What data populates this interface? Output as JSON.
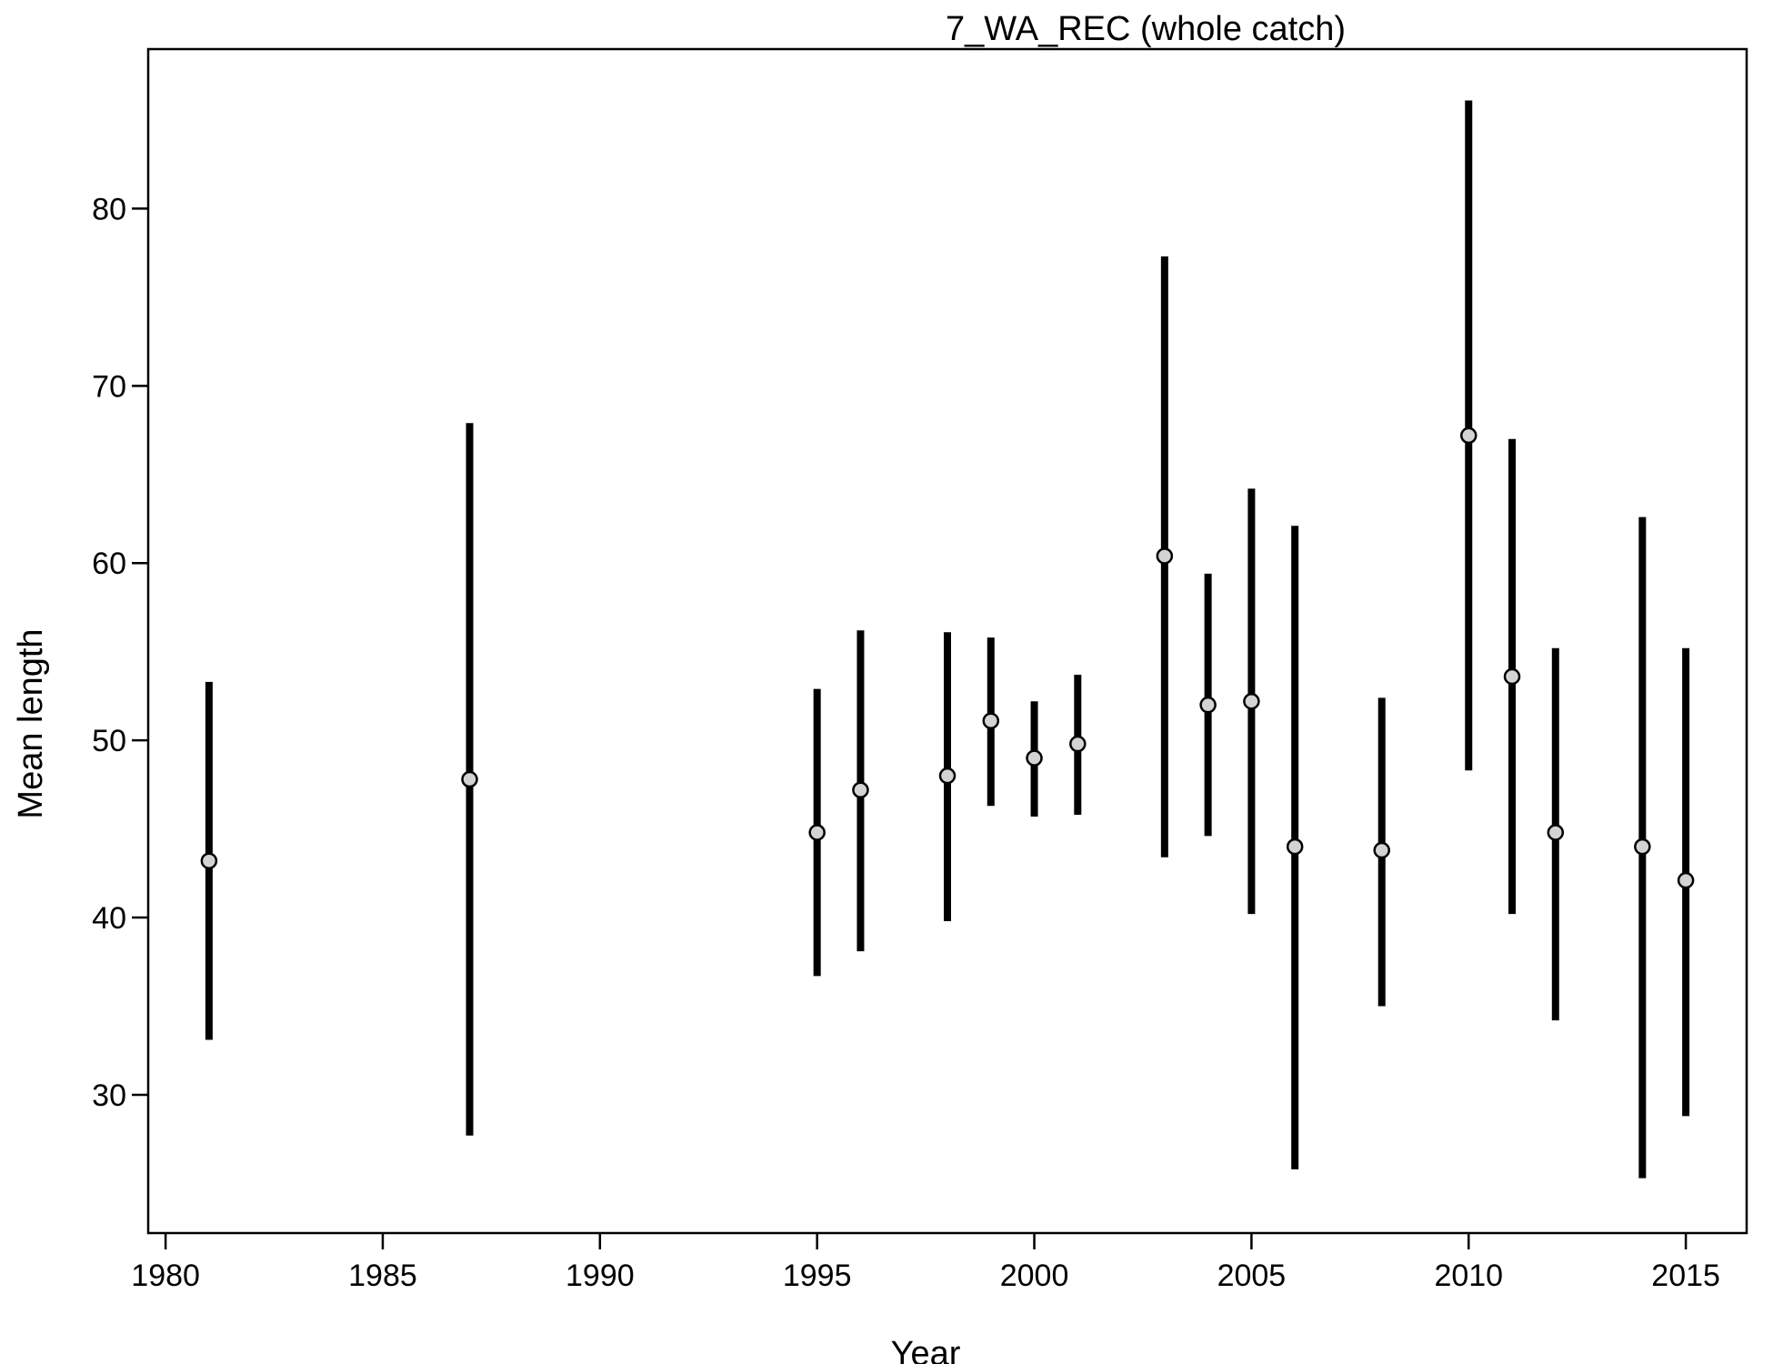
{
  "chart_data": {
    "type": "scatter",
    "title": "7_WA_REC (whole catch)",
    "xlabel": "Year",
    "ylabel": "Mean length",
    "xlim": [
      1979.6,
      2016.4
    ],
    "ylim": [
      22.2,
      89.0
    ],
    "x_ticks": [
      1980,
      1985,
      1990,
      1995,
      2000,
      2005,
      2010,
      2015
    ],
    "y_ticks": [
      30,
      40,
      50,
      60,
      70,
      80
    ],
    "grid": false,
    "legend": "none",
    "point_color": "#d3d3d3",
    "bar_color": "#000000",
    "points": [
      {
        "x": 1981,
        "y": 43.2,
        "lo": 33.1,
        "hi": 53.3
      },
      {
        "x": 1987,
        "y": 47.8,
        "lo": 27.7,
        "hi": 67.9
      },
      {
        "x": 1995,
        "y": 44.8,
        "lo": 36.7,
        "hi": 52.9
      },
      {
        "x": 1996,
        "y": 47.2,
        "lo": 38.1,
        "hi": 56.2
      },
      {
        "x": 1998,
        "y": 48.0,
        "lo": 39.8,
        "hi": 56.1
      },
      {
        "x": 1999,
        "y": 51.1,
        "lo": 46.3,
        "hi": 55.8
      },
      {
        "x": 2000,
        "y": 49.0,
        "lo": 45.7,
        "hi": 52.2
      },
      {
        "x": 2001,
        "y": 49.8,
        "lo": 45.8,
        "hi": 53.7
      },
      {
        "x": 2003,
        "y": 60.4,
        "lo": 43.4,
        "hi": 77.3
      },
      {
        "x": 2004,
        "y": 52.0,
        "lo": 44.6,
        "hi": 59.4
      },
      {
        "x": 2005,
        "y": 52.2,
        "lo": 40.2,
        "hi": 64.2
      },
      {
        "x": 2006,
        "y": 44.0,
        "lo": 25.8,
        "hi": 62.1
      },
      {
        "x": 2008,
        "y": 43.8,
        "lo": 35.0,
        "hi": 52.4
      },
      {
        "x": 2010,
        "y": 67.2,
        "lo": 48.3,
        "hi": 86.1
      },
      {
        "x": 2011,
        "y": 53.6,
        "lo": 40.2,
        "hi": 67.0
      },
      {
        "x": 2012,
        "y": 44.8,
        "lo": 34.2,
        "hi": 55.2
      },
      {
        "x": 2014,
        "y": 44.0,
        "lo": 25.3,
        "hi": 62.6
      },
      {
        "x": 2015,
        "y": 42.1,
        "lo": 28.8,
        "hi": 55.2
      }
    ]
  }
}
